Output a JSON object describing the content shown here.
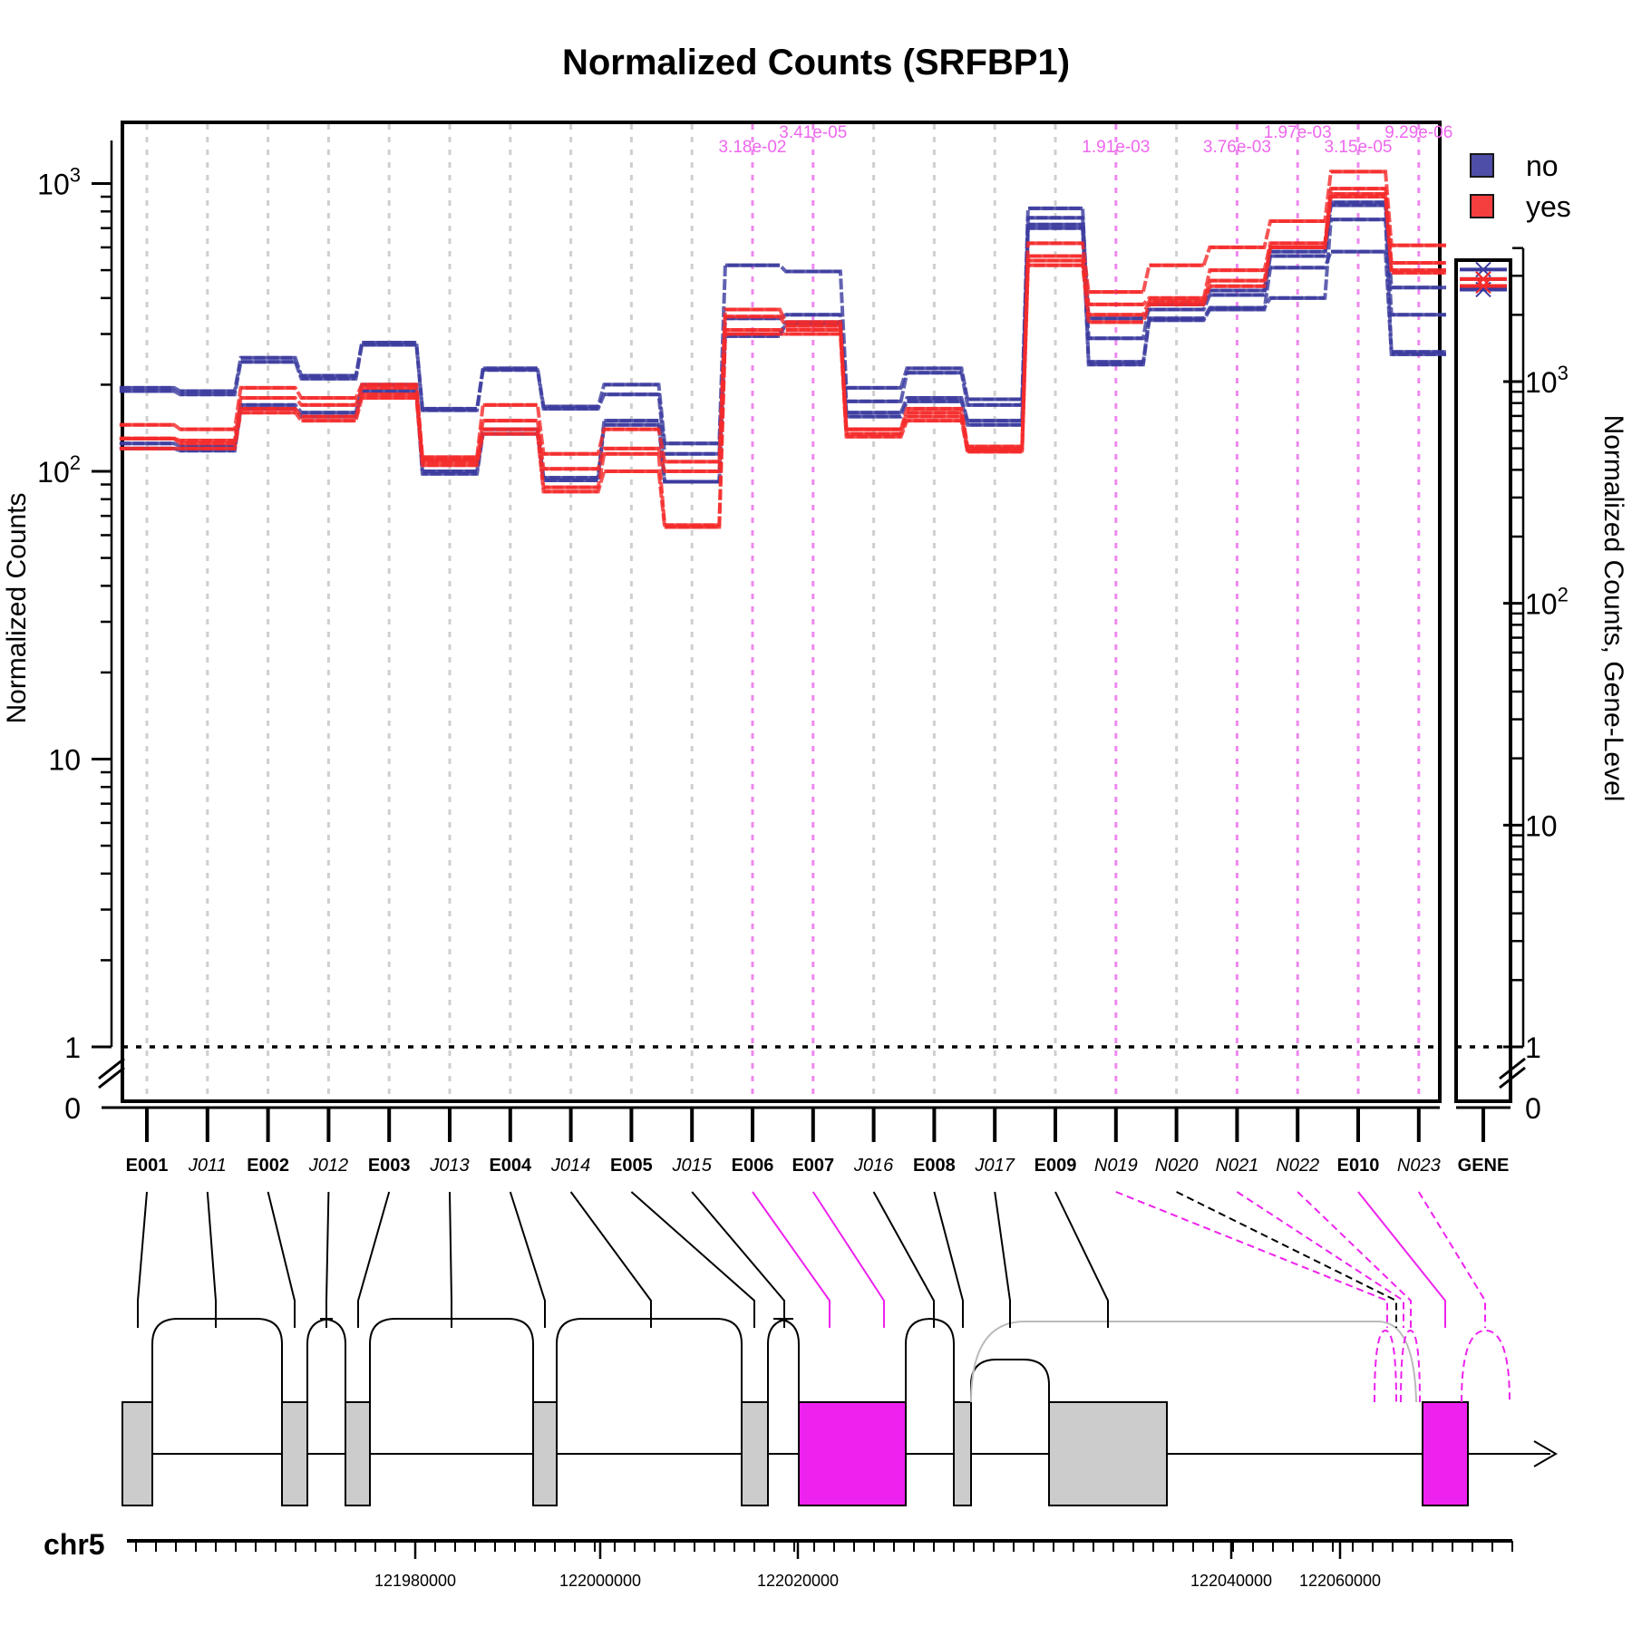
{
  "chart_data": {
    "type": "line",
    "title": "Normalized Counts (SRFBP1)",
    "ylabel": "Normalized Counts",
    "ylabel_right": "Normalized Counts, Gene-Level",
    "y_scale": "log",
    "ylim": [
      0,
      1500
    ],
    "y_ticks": [
      {
        "value": 0,
        "label": "0"
      },
      {
        "value": 1,
        "label": "1"
      },
      {
        "value": 10,
        "label": "10"
      },
      {
        "value": 100,
        "label": "10",
        "sup": "2"
      },
      {
        "value": 1000,
        "label": "10",
        "sup": "3"
      }
    ],
    "y_ticks_right": [
      {
        "value": 0,
        "label": "0"
      },
      {
        "value": 1,
        "label": "1"
      },
      {
        "value": 10,
        "label": "10"
      },
      {
        "value": 100,
        "label": "10",
        "sup": "2"
      },
      {
        "value": 1000,
        "label": "10",
        "sup": "3"
      }
    ],
    "features": [
      {
        "label": "E001",
        "kind": "exon",
        "sig": false
      },
      {
        "label": "J011",
        "kind": "junction",
        "sig": false
      },
      {
        "label": "E002",
        "kind": "exon",
        "sig": false
      },
      {
        "label": "J012",
        "kind": "junction",
        "sig": false
      },
      {
        "label": "E003",
        "kind": "exon",
        "sig": false
      },
      {
        "label": "J013",
        "kind": "junction",
        "sig": false
      },
      {
        "label": "E004",
        "kind": "exon",
        "sig": false
      },
      {
        "label": "J014",
        "kind": "junction",
        "sig": false
      },
      {
        "label": "E005",
        "kind": "exon",
        "sig": false
      },
      {
        "label": "J015",
        "kind": "junction",
        "sig": false
      },
      {
        "label": "E006",
        "kind": "exon",
        "sig": true
      },
      {
        "label": "E007",
        "kind": "exon",
        "sig": true
      },
      {
        "label": "J016",
        "kind": "junction",
        "sig": false
      },
      {
        "label": "E008",
        "kind": "exon",
        "sig": false
      },
      {
        "label": "J017",
        "kind": "junction",
        "sig": false
      },
      {
        "label": "E009",
        "kind": "exon",
        "sig": false
      },
      {
        "label": "N019",
        "kind": "novel",
        "sig": true
      },
      {
        "label": "N020",
        "kind": "novel",
        "sig": false
      },
      {
        "label": "N021",
        "kind": "novel",
        "sig": true
      },
      {
        "label": "N022",
        "kind": "novel",
        "sig": true
      },
      {
        "label": "E010",
        "kind": "exon",
        "sig": true
      },
      {
        "label": "N023",
        "kind": "novel",
        "sig": true
      }
    ],
    "gene_label": "GENE",
    "pvalues": [
      {
        "feature": 10,
        "label": "3.18e-02",
        "row": 1
      },
      {
        "feature": 11,
        "label": "3.41e-05",
        "row": 0
      },
      {
        "feature": 16,
        "label": "1.91e-03",
        "row": 1
      },
      {
        "feature": 18,
        "label": "3.76e-03",
        "row": 1
      },
      {
        "feature": 19,
        "label": "1.97e-03",
        "row": 0
      },
      {
        "feature": 20,
        "label": "3.15e-05",
        "row": 1
      },
      {
        "feature": 21,
        "label": "9.29e-06",
        "row": 0
      }
    ],
    "series": [
      {
        "name": "no",
        "color": "#3b3b9f",
        "samples": [
          [
            195,
            190,
            248,
            215,
            280,
            165,
            228,
            168,
            200,
            125,
            520,
            495,
            195,
            228,
            178,
            820,
            290,
            380,
            425,
            580,
            860,
            435
          ],
          [
            190,
            185,
            240,
            210,
            275,
            163,
            225,
            165,
            185,
            115,
            340,
            350,
            175,
            220,
            170,
            760,
            340,
            365,
            410,
            560,
            840,
            350
          ],
          [
            125,
            122,
            170,
            160,
            200,
            100,
            140,
            95,
            150,
            92,
            300,
            330,
            160,
            180,
            150,
            720,
            240,
            340,
            370,
            400,
            750,
            260
          ],
          [
            120,
            118,
            165,
            155,
            190,
            98,
            135,
            93,
            145,
            92,
            295,
            325,
            155,
            175,
            145,
            700,
            235,
            335,
            365,
            510,
            580,
            255
          ]
        ],
        "gene": [
          3200,
          2900,
          2600
        ]
      },
      {
        "name": "yes",
        "color": "#f52a2a",
        "samples": [
          [
            145,
            140,
            195,
            180,
            200,
            112,
            170,
            115,
            140,
            108,
            365,
            330,
            140,
            165,
            122,
            620,
            420,
            520,
            600,
            740,
            1100,
            610
          ],
          [
            130,
            128,
            180,
            170,
            195,
            110,
            150,
            102,
            120,
            100,
            345,
            320,
            140,
            160,
            120,
            560,
            380,
            400,
            500,
            620,
            960,
            530
          ],
          [
            130,
            125,
            165,
            155,
            185,
            108,
            140,
            88,
            115,
            65,
            310,
            310,
            135,
            155,
            118,
            540,
            350,
            390,
            460,
            600,
            920,
            500
          ],
          [
            120,
            120,
            160,
            150,
            180,
            105,
            135,
            85,
            100,
            64,
            300,
            300,
            132,
            150,
            117,
            520,
            330,
            380,
            440,
            600,
            900,
            490
          ]
        ],
        "gene": [
          2900,
          2700
        ]
      }
    ],
    "legend": [
      {
        "name": "no",
        "color": "#3b3b9f"
      },
      {
        "name": "yes",
        "color": "#f52a2a"
      }
    ],
    "legend_position": "top-right",
    "grid": "vertical dashed per feature",
    "colors": {
      "significant": "#ee22ee",
      "exon_fill": "#cccccc",
      "axis": "#000000"
    },
    "chromosome": "chr5",
    "genomic_ticks": [
      "121980000",
      "122000000",
      "122020000",
      "122040000",
      "122060000"
    ],
    "reference_line": 1
  }
}
